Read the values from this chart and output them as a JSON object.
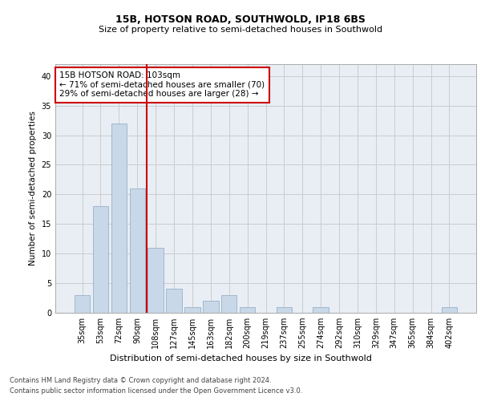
{
  "title1": "15B, HOTSON ROAD, SOUTHWOLD, IP18 6BS",
  "title2": "Size of property relative to semi-detached houses in Southwold",
  "xlabel": "Distribution of semi-detached houses by size in Southwold",
  "ylabel": "Number of semi-detached properties",
  "categories": [
    "35sqm",
    "53sqm",
    "72sqm",
    "90sqm",
    "108sqm",
    "127sqm",
    "145sqm",
    "163sqm",
    "182sqm",
    "200sqm",
    "219sqm",
    "237sqm",
    "255sqm",
    "274sqm",
    "292sqm",
    "310sqm",
    "329sqm",
    "347sqm",
    "365sqm",
    "384sqm",
    "402sqm"
  ],
  "values": [
    3,
    18,
    32,
    21,
    11,
    4,
    1,
    2,
    3,
    1,
    0,
    1,
    0,
    1,
    0,
    0,
    0,
    0,
    0,
    0,
    1
  ],
  "bar_color": "#c8d8e8",
  "bar_edge_color": "#9ab0c8",
  "vline_color": "#cc0000",
  "vline_index": 4,
  "annotation_text": "15B HOTSON ROAD: 103sqm\n← 71% of semi-detached houses are smaller (70)\n29% of semi-detached houses are larger (28) →",
  "annotation_box_facecolor": "#ffffff",
  "annotation_box_edgecolor": "#cc0000",
  "ylim": [
    0,
    42
  ],
  "yticks": [
    0,
    5,
    10,
    15,
    20,
    25,
    30,
    35,
    40
  ],
  "grid_color": "#cccccc",
  "plot_bg_color": "#e8eef4",
  "footer1": "Contains HM Land Registry data © Crown copyright and database right 2024.",
  "footer2": "Contains public sector information licensed under the Open Government Licence v3.0.",
  "title1_fontsize": 9,
  "title2_fontsize": 8,
  "ylabel_fontsize": 7.5,
  "xlabel_fontsize": 8,
  "tick_fontsize": 7,
  "annotation_fontsize": 7.5,
  "footer_fontsize": 6
}
